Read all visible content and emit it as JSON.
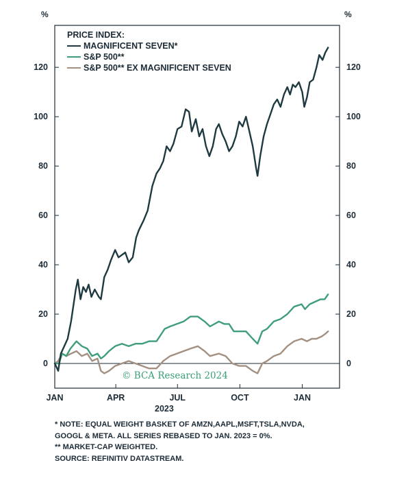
{
  "chart_data": {
    "type": "line",
    "y_unit_left": "%",
    "y_unit_right": "%",
    "ylim": [
      -10,
      137
    ],
    "yticks": [
      0,
      20,
      40,
      60,
      80,
      100,
      120
    ],
    "xlim": [
      "2023-01-01",
      "2024-02-25"
    ],
    "x_tick_labels": [
      {
        "date": "2023-01-01",
        "label": "JAN"
      },
      {
        "date": "2023-04-01",
        "label": "APR"
      },
      {
        "date": "2023-07-01",
        "label": "JUL"
      },
      {
        "date": "2023-10-01",
        "label": "OCT"
      },
      {
        "date": "2024-01-01",
        "label": "JAN"
      }
    ],
    "x_group_label": "2023",
    "legend_title": "PRICE INDEX:",
    "grid": false,
    "legend_position": "top-left",
    "series": [
      {
        "name": "MAGNIFICENT SEVEN*",
        "color": "#1e3a40",
        "points": [
          [
            "2023-01-01",
            0
          ],
          [
            "2023-01-06",
            -3
          ],
          [
            "2023-01-10",
            4
          ],
          [
            "2023-01-15",
            7
          ],
          [
            "2023-01-20",
            10
          ],
          [
            "2023-01-25",
            17
          ],
          [
            "2023-02-01",
            30
          ],
          [
            "2023-02-04",
            34
          ],
          [
            "2023-02-08",
            26
          ],
          [
            "2023-02-12",
            31
          ],
          [
            "2023-02-16",
            29
          ],
          [
            "2023-02-20",
            32
          ],
          [
            "2023-02-24",
            27
          ],
          [
            "2023-03-01",
            30
          ],
          [
            "2023-03-07",
            27
          ],
          [
            "2023-03-10",
            26
          ],
          [
            "2023-03-15",
            35
          ],
          [
            "2023-03-20",
            38
          ],
          [
            "2023-03-25",
            42
          ],
          [
            "2023-03-31",
            46
          ],
          [
            "2023-04-05",
            43
          ],
          [
            "2023-04-10",
            44
          ],
          [
            "2023-04-15",
            45
          ],
          [
            "2023-04-20",
            41
          ],
          [
            "2023-04-26",
            43
          ],
          [
            "2023-05-01",
            51
          ],
          [
            "2023-05-05",
            54
          ],
          [
            "2023-05-12",
            58
          ],
          [
            "2023-05-18",
            62
          ],
          [
            "2023-05-25",
            72
          ],
          [
            "2023-05-31",
            77
          ],
          [
            "2023-06-05",
            79
          ],
          [
            "2023-06-10",
            82
          ],
          [
            "2023-06-15",
            88
          ],
          [
            "2023-06-20",
            86
          ],
          [
            "2023-06-25",
            89
          ],
          [
            "2023-07-01",
            95
          ],
          [
            "2023-07-07",
            96
          ],
          [
            "2023-07-13",
            103
          ],
          [
            "2023-07-18",
            102
          ],
          [
            "2023-07-22",
            94
          ],
          [
            "2023-07-28",
            99
          ],
          [
            "2023-08-02",
            92
          ],
          [
            "2023-08-07",
            95
          ],
          [
            "2023-08-12",
            88
          ],
          [
            "2023-08-17",
            84
          ],
          [
            "2023-08-22",
            88
          ],
          [
            "2023-08-27",
            95
          ],
          [
            "2023-08-31",
            97
          ],
          [
            "2023-09-05",
            93
          ],
          [
            "2023-09-10",
            90
          ],
          [
            "2023-09-15",
            86
          ],
          [
            "2023-09-20",
            88
          ],
          [
            "2023-09-25",
            92
          ],
          [
            "2023-09-30",
            98
          ],
          [
            "2023-10-05",
            96
          ],
          [
            "2023-10-10",
            100
          ],
          [
            "2023-10-15",
            94
          ],
          [
            "2023-10-20",
            88
          ],
          [
            "2023-10-25",
            79
          ],
          [
            "2023-10-27",
            76
          ],
          [
            "2023-10-31",
            84
          ],
          [
            "2023-11-05",
            92
          ],
          [
            "2023-11-10",
            97
          ],
          [
            "2023-11-15",
            101
          ],
          [
            "2023-11-20",
            105
          ],
          [
            "2023-11-25",
            107
          ],
          [
            "2023-11-30",
            104
          ],
          [
            "2023-12-05",
            109
          ],
          [
            "2023-12-10",
            112
          ],
          [
            "2023-12-14",
            109
          ],
          [
            "2023-12-18",
            113
          ],
          [
            "2023-12-22",
            112
          ],
          [
            "2023-12-27",
            114
          ],
          [
            "2024-01-01",
            110
          ],
          [
            "2024-01-04",
            104
          ],
          [
            "2024-01-08",
            108
          ],
          [
            "2024-01-12",
            114
          ],
          [
            "2024-01-17",
            115
          ],
          [
            "2024-01-22",
            120
          ],
          [
            "2024-01-26",
            125
          ],
          [
            "2024-01-31",
            123
          ],
          [
            "2024-02-04",
            126
          ],
          [
            "2024-02-08",
            128
          ]
        ]
      },
      {
        "name": "S&P 500**",
        "color": "#3f9e7a",
        "points": [
          [
            "2023-01-01",
            0
          ],
          [
            "2023-01-07",
            0
          ],
          [
            "2023-01-12",
            4
          ],
          [
            "2023-01-18",
            3
          ],
          [
            "2023-01-24",
            6
          ],
          [
            "2023-02-02",
            9
          ],
          [
            "2023-02-10",
            7
          ],
          [
            "2023-02-18",
            6
          ],
          [
            "2023-02-25",
            3
          ],
          [
            "2023-03-05",
            4
          ],
          [
            "2023-03-10",
            2
          ],
          [
            "2023-03-15",
            3
          ],
          [
            "2023-03-22",
            5
          ],
          [
            "2023-03-31",
            7
          ],
          [
            "2023-04-10",
            8
          ],
          [
            "2023-04-20",
            7
          ],
          [
            "2023-04-30",
            8
          ],
          [
            "2023-05-10",
            8
          ],
          [
            "2023-05-20",
            9
          ],
          [
            "2023-05-31",
            9
          ],
          [
            "2023-06-05",
            11
          ],
          [
            "2023-06-12",
            14
          ],
          [
            "2023-06-20",
            15
          ],
          [
            "2023-06-30",
            16
          ],
          [
            "2023-07-10",
            17
          ],
          [
            "2023-07-20",
            19
          ],
          [
            "2023-07-31",
            19
          ],
          [
            "2023-08-10",
            17
          ],
          [
            "2023-08-18",
            15
          ],
          [
            "2023-08-31",
            17
          ],
          [
            "2023-09-08",
            16
          ],
          [
            "2023-09-15",
            16
          ],
          [
            "2023-09-22",
            13
          ],
          [
            "2023-09-30",
            13
          ],
          [
            "2023-10-10",
            13
          ],
          [
            "2023-10-20",
            10
          ],
          [
            "2023-10-27",
            8
          ],
          [
            "2023-11-03",
            13
          ],
          [
            "2023-11-10",
            14
          ],
          [
            "2023-11-20",
            17
          ],
          [
            "2023-11-30",
            18
          ],
          [
            "2023-12-10",
            20
          ],
          [
            "2023-12-20",
            23
          ],
          [
            "2023-12-31",
            24
          ],
          [
            "2024-01-05",
            22
          ],
          [
            "2024-01-12",
            24
          ],
          [
            "2024-01-20",
            25
          ],
          [
            "2024-01-28",
            26
          ],
          [
            "2024-02-03",
            26
          ],
          [
            "2024-02-08",
            28
          ]
        ]
      },
      {
        "name": "S&P 500** EX MAGNIFICENT SEVEN",
        "color": "#a39080",
        "points": [
          [
            "2023-01-01",
            0
          ],
          [
            "2023-01-06",
            1
          ],
          [
            "2023-01-12",
            4
          ],
          [
            "2023-01-18",
            3
          ],
          [
            "2023-01-25",
            4
          ],
          [
            "2023-02-02",
            5
          ],
          [
            "2023-02-10",
            3
          ],
          [
            "2023-02-18",
            4
          ],
          [
            "2023-02-25",
            1
          ],
          [
            "2023-03-05",
            2
          ],
          [
            "2023-03-10",
            -3
          ],
          [
            "2023-03-15",
            -4
          ],
          [
            "2023-03-22",
            -3
          ],
          [
            "2023-03-31",
            -1
          ],
          [
            "2023-04-10",
            0
          ],
          [
            "2023-04-20",
            1
          ],
          [
            "2023-04-30",
            0
          ],
          [
            "2023-05-10",
            -1
          ],
          [
            "2023-05-20",
            -2
          ],
          [
            "2023-05-31",
            -2
          ],
          [
            "2023-06-10",
            1
          ],
          [
            "2023-06-20",
            3
          ],
          [
            "2023-06-30",
            4
          ],
          [
            "2023-07-10",
            5
          ],
          [
            "2023-07-20",
            6
          ],
          [
            "2023-07-31",
            7
          ],
          [
            "2023-08-10",
            5
          ],
          [
            "2023-08-18",
            3
          ],
          [
            "2023-08-31",
            4
          ],
          [
            "2023-09-10",
            3
          ],
          [
            "2023-09-20",
            0
          ],
          [
            "2023-09-30",
            -1
          ],
          [
            "2023-10-10",
            -1
          ],
          [
            "2023-10-20",
            -3
          ],
          [
            "2023-10-27",
            -4
          ],
          [
            "2023-11-03",
            0
          ],
          [
            "2023-11-10",
            1
          ],
          [
            "2023-11-20",
            3
          ],
          [
            "2023-11-30",
            4
          ],
          [
            "2023-12-10",
            7
          ],
          [
            "2023-12-20",
            9
          ],
          [
            "2023-12-31",
            10
          ],
          [
            "2024-01-08",
            9
          ],
          [
            "2024-01-15",
            10
          ],
          [
            "2024-01-22",
            10
          ],
          [
            "2024-01-30",
            11
          ],
          [
            "2024-02-04",
            12
          ],
          [
            "2024-02-08",
            13
          ]
        ]
      }
    ]
  },
  "watermark": "© BCA Research 2024",
  "notes": [
    "*  NOTE: EQUAL WEIGHT BASKET OF AMZN,AAPL,MSFT,TSLA,NVDA,",
    "   GOOGL & META. ALL SERIES REBASED TO JAN. 2023 = 0%.",
    "** MARKET-CAP WEIGHTED.",
    "SOURCE: REFINITIV DATASTREAM."
  ]
}
